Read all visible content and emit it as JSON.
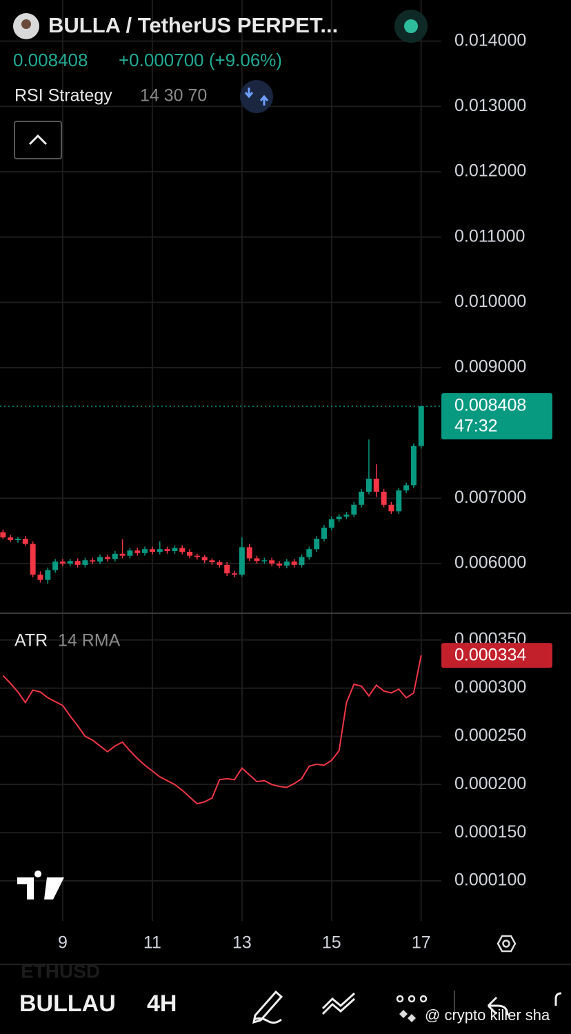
{
  "header": {
    "symbol": "BULLA / TetherUS PERPET...",
    "price": "0.008408",
    "change": "+0.000700 (+9.06%)",
    "indicator": "RSI Strategy",
    "indicator_params": "14 30 70"
  },
  "chart_data": [
    {
      "type": "candlestick",
      "color_up": "#089981",
      "color_down": "#f23645",
      "countdown": "47:32",
      "x": [
        7.667,
        7.833,
        8,
        8.167,
        8.333,
        8.5,
        8.667,
        8.833,
        9,
        9.167,
        9.333,
        9.5,
        9.667,
        9.833,
        10,
        10.167,
        10.333,
        10.5,
        10.667,
        10.833,
        11,
        11.167,
        11.333,
        11.5,
        11.667,
        11.833,
        12,
        12.167,
        12.333,
        12.5,
        12.667,
        12.833,
        13,
        13.167,
        13.333,
        13.5,
        13.667,
        13.833,
        14,
        14.167,
        14.333,
        14.5,
        14.667,
        14.833,
        15,
        15.167,
        15.333,
        15.5,
        15.667,
        15.833,
        16,
        16.167,
        16.333,
        16.5,
        16.667,
        16.833,
        17
      ],
      "open": [
        0.00648,
        0.0064,
        0.00636,
        0.00638,
        0.0063,
        0.00583,
        0.00575,
        0.0059,
        0.00603,
        0.006,
        0.00604,
        0.00598,
        0.00605,
        0.00603,
        0.0061,
        0.00607,
        0.00615,
        0.00612,
        0.0062,
        0.00616,
        0.00622,
        0.00618,
        0.00622,
        0.00619,
        0.00624,
        0.00618,
        0.00612,
        0.0061,
        0.00605,
        0.00602,
        0.00598,
        0.00585,
        0.00583,
        0.00625,
        0.00608,
        0.00604,
        0.00605,
        0.006,
        0.00597,
        0.00603,
        0.00598,
        0.0061,
        0.00622,
        0.00638,
        0.00655,
        0.00668,
        0.00672,
        0.00675,
        0.0069,
        0.0071,
        0.0073,
        0.0071,
        0.0069,
        0.0068,
        0.00712,
        0.0072,
        0.0078
      ],
      "high": [
        0.00652,
        0.00644,
        0.00641,
        0.00642,
        0.00634,
        0.00588,
        0.00594,
        0.00607,
        0.00607,
        0.00607,
        0.00608,
        0.00609,
        0.00609,
        0.00614,
        0.00614,
        0.00619,
        0.00637,
        0.00624,
        0.00624,
        0.00626,
        0.00626,
        0.00634,
        0.00626,
        0.00628,
        0.00628,
        0.00622,
        0.00615,
        0.00613,
        0.00608,
        0.00605,
        0.00602,
        0.00589,
        0.0064,
        0.0063,
        0.00612,
        0.00609,
        0.00609,
        0.00604,
        0.00607,
        0.00607,
        0.00614,
        0.00626,
        0.00642,
        0.00659,
        0.00672,
        0.00676,
        0.00679,
        0.00694,
        0.00714,
        0.0079,
        0.00752,
        0.00714,
        0.00694,
        0.00716,
        0.00724,
        0.00784,
        0.00842
      ],
      "low": [
        0.00638,
        0.00633,
        0.00632,
        0.00627,
        0.00579,
        0.00571,
        0.00569,
        0.00586,
        0.00596,
        0.00596,
        0.00594,
        0.00594,
        0.00599,
        0.00599,
        0.00603,
        0.00603,
        0.00608,
        0.00608,
        0.00612,
        0.00612,
        0.00614,
        0.00614,
        0.00615,
        0.00615,
        0.00614,
        0.00608,
        0.00606,
        0.00601,
        0.00598,
        0.00594,
        0.00581,
        0.00579,
        0.0058,
        0.00604,
        0.006,
        0.006,
        0.00596,
        0.00593,
        0.00593,
        0.00594,
        0.00594,
        0.00606,
        0.00618,
        0.00634,
        0.00651,
        0.00664,
        0.00668,
        0.00671,
        0.00686,
        0.00706,
        0.00702,
        0.00686,
        0.00676,
        0.00676,
        0.00708,
        0.00716,
        0.00776
      ],
      "close": [
        0.0064,
        0.00636,
        0.00638,
        0.0063,
        0.00583,
        0.00575,
        0.0059,
        0.00603,
        0.006,
        0.00604,
        0.00598,
        0.00605,
        0.00603,
        0.0061,
        0.00607,
        0.00615,
        0.00612,
        0.0062,
        0.00616,
        0.00622,
        0.00618,
        0.00622,
        0.00619,
        0.00624,
        0.00618,
        0.00612,
        0.0061,
        0.00605,
        0.00602,
        0.00598,
        0.00585,
        0.00583,
        0.00625,
        0.00608,
        0.00604,
        0.00605,
        0.006,
        0.00597,
        0.00603,
        0.00598,
        0.0061,
        0.00622,
        0.00638,
        0.00655,
        0.00668,
        0.00672,
        0.00675,
        0.0069,
        0.0071,
        0.0073,
        0.0071,
        0.0069,
        0.0068,
        0.00712,
        0.0072,
        0.0078,
        0.008408
      ],
      "xlim": [
        7.6,
        17.45
      ],
      "xticks": [
        9,
        11,
        13,
        15,
        17
      ],
      "ylim": [
        0.00525,
        0.01463
      ],
      "yticks": [
        {
          "value": 0.014,
          "label": "0.014000"
        },
        {
          "value": 0.013,
          "label": "0.013000"
        },
        {
          "value": 0.012,
          "label": "0.012000"
        },
        {
          "value": 0.011,
          "label": "0.011000"
        },
        {
          "value": 0.01,
          "label": "0.010000"
        },
        {
          "value": 0.009,
          "label": "0.009000"
        },
        {
          "value": 0.007,
          "label": "0.007000"
        },
        {
          "value": 0.006,
          "label": "0.006000"
        }
      ],
      "grid": true
    },
    {
      "type": "line",
      "title": "ATR",
      "params": "14 RMA",
      "color": "#f23645",
      "x": [
        7.667,
        7.833,
        8,
        8.167,
        8.333,
        8.5,
        8.667,
        8.833,
        9,
        9.167,
        9.333,
        9.5,
        9.667,
        9.833,
        10,
        10.167,
        10.333,
        10.5,
        10.667,
        10.833,
        11,
        11.167,
        11.333,
        11.5,
        11.667,
        11.833,
        12,
        12.167,
        12.333,
        12.5,
        12.667,
        12.833,
        13,
        13.167,
        13.333,
        13.5,
        13.667,
        13.833,
        14,
        14.167,
        14.333,
        14.5,
        14.667,
        14.833,
        15,
        15.167,
        15.333,
        15.5,
        15.667,
        15.833,
        16,
        16.167,
        16.333,
        16.5,
        16.667,
        16.833,
        17
      ],
      "values": [
        0.000313,
        0.000305,
        0.000296,
        0.000285,
        0.000298,
        0.000296,
        0.00029,
        0.000286,
        0.000282,
        0.000271,
        0.000261,
        0.00025,
        0.000246,
        0.00024,
        0.000234,
        0.00024,
        0.000244,
        0.000235,
        0.000227,
        0.00022,
        0.000214,
        0.000208,
        0.000204,
        0.0002,
        0.000194,
        0.000187,
        0.00018,
        0.000182,
        0.000186,
        0.000205,
        0.000206,
        0.000205,
        0.000217,
        0.00021,
        0.000203,
        0.000204,
        0.0002,
        0.000198,
        0.000197,
        0.000201,
        0.000206,
        0.000219,
        0.000221,
        0.00022,
        0.000225,
        0.000235,
        0.000285,
        0.000304,
        0.000302,
        0.000292,
        0.000303,
        0.000297,
        0.000295,
        0.000299,
        0.00029,
        0.000295,
        0.000334
      ],
      "xlim": [
        7.6,
        17.45
      ],
      "ylim": [
        5.85e-05,
        0.000377
      ],
      "yticks": [
        {
          "value": 0.00035,
          "label": "0.000350"
        },
        {
          "value": 0.0003,
          "label": "0.000300"
        },
        {
          "value": 0.00025,
          "label": "0.000250"
        },
        {
          "value": 0.0002,
          "label": "0.000200"
        },
        {
          "value": 0.00015,
          "label": "0.000150"
        },
        {
          "value": 0.0001,
          "label": "0.000100"
        }
      ],
      "grid": true
    }
  ],
  "toolbar": {
    "symbol": "BULLAU",
    "interval": "4H",
    "ghost_symbol": "ETHUSD",
    "watermark": "@ crypto killer sha"
  }
}
